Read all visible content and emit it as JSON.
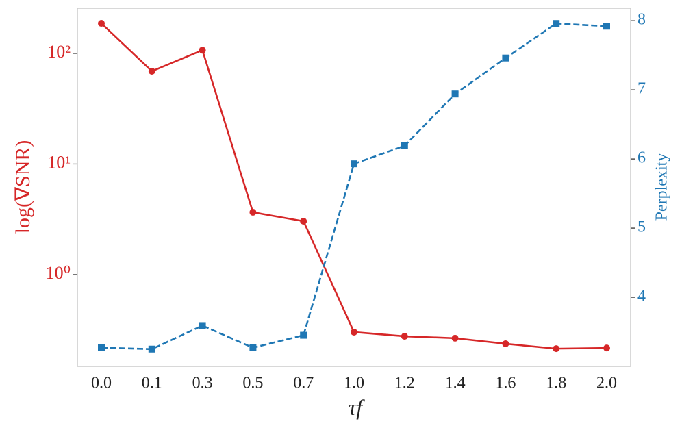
{
  "chart_data": {
    "type": "line",
    "xlabel": "τf",
    "ylabel": "log(∇SNR)",
    "y2label": "Perplexity",
    "categories": [
      "0.0",
      "0.1",
      "0.3",
      "0.5",
      "0.7",
      "1.0",
      "1.2",
      "1.4",
      "1.6",
      "1.8",
      "2.0"
    ],
    "yscale": "log",
    "ylim": [
      0.148,
      256
    ],
    "yticks": [
      {
        "value": 1,
        "label": "10⁰"
      },
      {
        "value": 10,
        "label": "10¹"
      },
      {
        "value": 100,
        "label": "10²"
      }
    ],
    "y2lim": [
      3.0,
      8.18
    ],
    "y2ticks": [
      4,
      5,
      6,
      7,
      8
    ],
    "grid": false,
    "series": [
      {
        "name": "log(∇SNR)",
        "color": "#d62728",
        "linestyle": "solid",
        "marker": "circle",
        "axis": "y",
        "values": [
          187,
          69,
          107,
          3.66,
          3.04,
          0.302,
          0.277,
          0.266,
          0.237,
          0.214,
          0.217
        ]
      },
      {
        "name": "Perplexity",
        "color": "#1f77b4",
        "linestyle": "dashed",
        "marker": "square",
        "axis": "y2",
        "values": [
          3.27,
          3.25,
          3.59,
          3.27,
          3.45,
          5.93,
          6.19,
          6.94,
          7.46,
          7.96,
          7.92
        ]
      }
    ]
  }
}
